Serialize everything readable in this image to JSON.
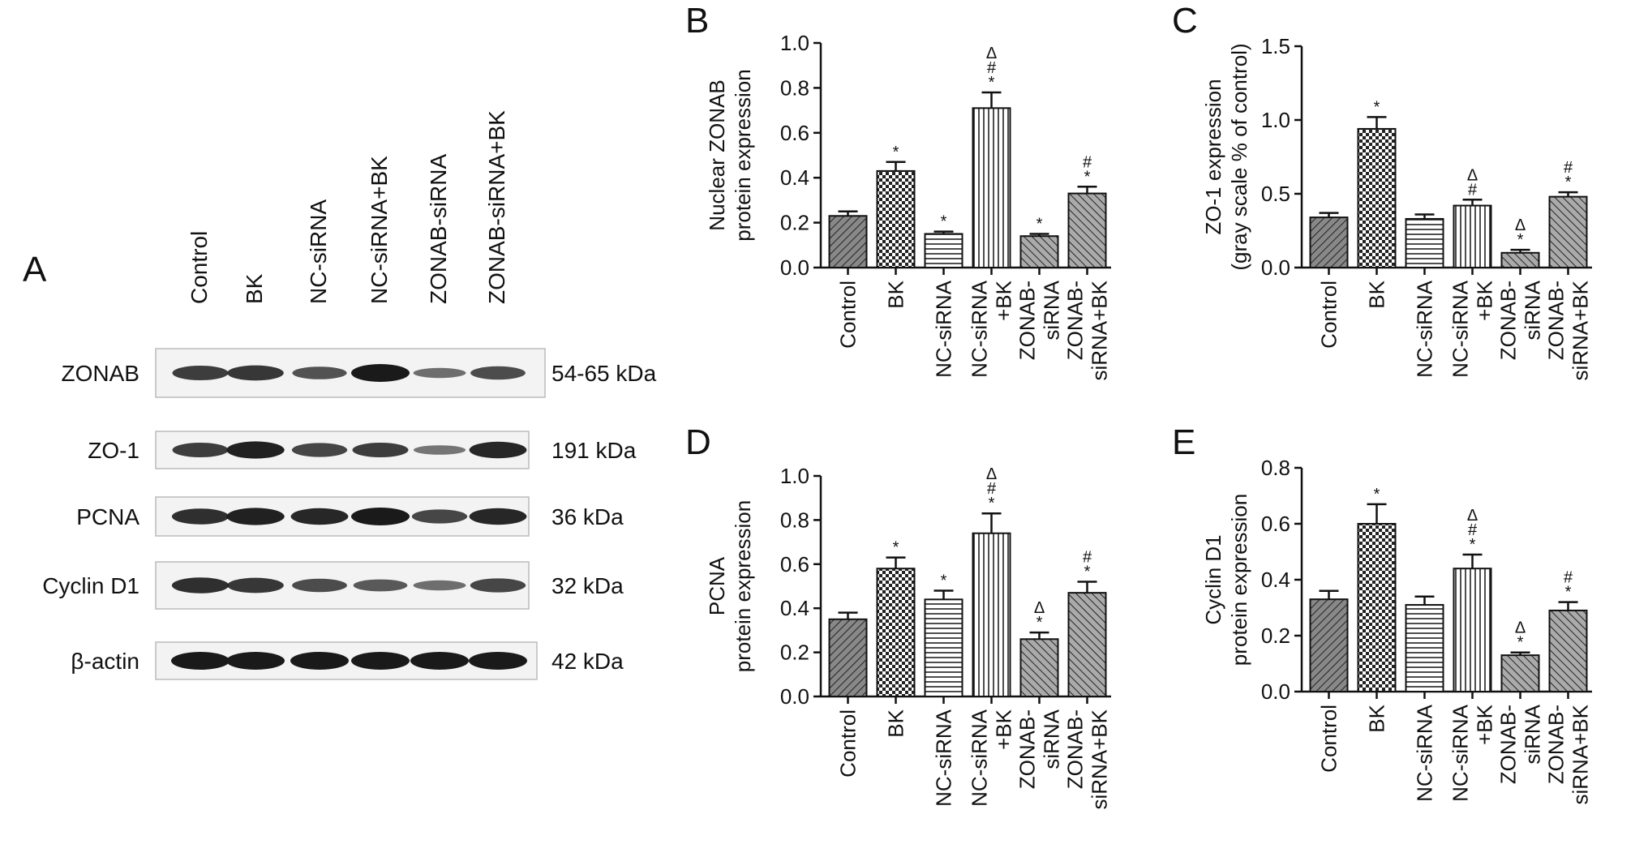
{
  "panels": {
    "A": "A",
    "B": "B",
    "C": "C",
    "D": "D",
    "E": "E"
  },
  "blot": {
    "lanes": [
      "Control",
      "BK",
      "NC-siRNA",
      "NC-siRNA+BK",
      "ZONAB-siRNA",
      "ZONAB-siRNA+BK"
    ],
    "rows": [
      {
        "protein": "ZONAB",
        "kda": "54-65 kDa",
        "intensity": [
          0.75,
          0.8,
          0.6,
          1.0,
          0.4,
          0.65
        ]
      },
      {
        "protein": "ZO-1",
        "kda": "191 kDa",
        "intensity": [
          0.75,
          0.95,
          0.7,
          0.75,
          0.35,
          0.9
        ]
      },
      {
        "protein": "PCNA",
        "kda": "36 kDa",
        "intensity": [
          0.85,
          0.95,
          0.9,
          1.0,
          0.7,
          0.9
        ]
      },
      {
        "protein": "Cyclin D1",
        "kda": "32 kDa",
        "intensity": [
          0.85,
          0.8,
          0.65,
          0.55,
          0.4,
          0.7
        ]
      },
      {
        "protein": "β-actin",
        "kda": "42 kDa",
        "intensity": [
          1.0,
          1.0,
          1.0,
          1.0,
          1.0,
          1.0
        ]
      }
    ]
  },
  "chart_data": [
    {
      "id": "B",
      "type": "bar",
      "categories": [
        "Control",
        "BK",
        "NC-siRNA",
        "NC-siRNA\n+BK",
        "ZONAB-\nsiRNA",
        "ZONAB-\nsiRNA+BK"
      ],
      "values": [
        0.23,
        0.43,
        0.15,
        0.71,
        0.14,
        0.33
      ],
      "errors": [
        0.02,
        0.04,
        0.01,
        0.07,
        0.01,
        0.03
      ],
      "sig": [
        [],
        [
          "*"
        ],
        [
          "*"
        ],
        [
          "Δ",
          "#",
          "*"
        ],
        [
          "*"
        ],
        [
          "#",
          "*"
        ]
      ],
      "ylabel": [
        "Nuclear ZONAB",
        "protein expression"
      ],
      "ylim": [
        0,
        1.0
      ],
      "ticks": [
        "0.0",
        "0.2",
        "0.4",
        "0.6",
        "0.8",
        "1.0"
      ]
    },
    {
      "id": "C",
      "type": "bar",
      "categories": [
        "Control",
        "BK",
        "NC-siRNA",
        "NC-siRNA\n+BK",
        "ZONAB-\nsiRNA",
        "ZONAB-\nsiRNA+BK"
      ],
      "values": [
        0.34,
        0.94,
        0.33,
        0.42,
        0.1,
        0.48
      ],
      "errors": [
        0.03,
        0.08,
        0.03,
        0.04,
        0.02,
        0.03
      ],
      "sig": [
        [],
        [
          "*"
        ],
        [],
        [
          "Δ",
          "#"
        ],
        [
          "Δ",
          "*"
        ],
        [
          "#",
          "*"
        ]
      ],
      "ylabel": [
        "ZO-1 expression",
        "(gray scale % of control)"
      ],
      "ylim": [
        0,
        1.5
      ],
      "ticks": [
        "0.0",
        "0.5",
        "1.0",
        "1.5"
      ]
    },
    {
      "id": "D",
      "type": "bar",
      "categories": [
        "Control",
        "BK",
        "NC-siRNA",
        "NC-siRNA\n+BK",
        "ZONAB-\nsiRNA",
        "ZONAB-\nsiRNA+BK"
      ],
      "values": [
        0.35,
        0.58,
        0.44,
        0.74,
        0.26,
        0.47
      ],
      "errors": [
        0.03,
        0.05,
        0.04,
        0.09,
        0.03,
        0.05
      ],
      "sig": [
        [],
        [
          "*"
        ],
        [
          "*"
        ],
        [
          "Δ",
          "#",
          "*"
        ],
        [
          "Δ",
          "*"
        ],
        [
          "#",
          "*"
        ]
      ],
      "ylabel": [
        "PCNA",
        "protein expression"
      ],
      "ylim": [
        0,
        1.0
      ],
      "ticks": [
        "0.0",
        "0.2",
        "0.4",
        "0.6",
        "0.8",
        "1.0"
      ]
    },
    {
      "id": "E",
      "type": "bar",
      "categories": [
        "Control",
        "BK",
        "NC-siRNA",
        "NC-siRNA\n+BK",
        "ZONAB-\nsiRNA",
        "ZONAB-\nsiRNA+BK"
      ],
      "values": [
        0.33,
        0.6,
        0.31,
        0.44,
        0.13,
        0.29
      ],
      "errors": [
        0.03,
        0.07,
        0.03,
        0.05,
        0.01,
        0.03
      ],
      "sig": [
        [],
        [
          "*"
        ],
        [],
        [
          "Δ",
          "#",
          "*"
        ],
        [
          "Δ",
          "*"
        ],
        [
          "#",
          "*"
        ]
      ],
      "ylabel": [
        "Cyclin D1",
        "protein expression"
      ],
      "ylim": [
        0,
        0.8
      ],
      "ticks": [
        "0.0",
        "0.2",
        "0.4",
        "0.6",
        "0.8"
      ]
    }
  ]
}
